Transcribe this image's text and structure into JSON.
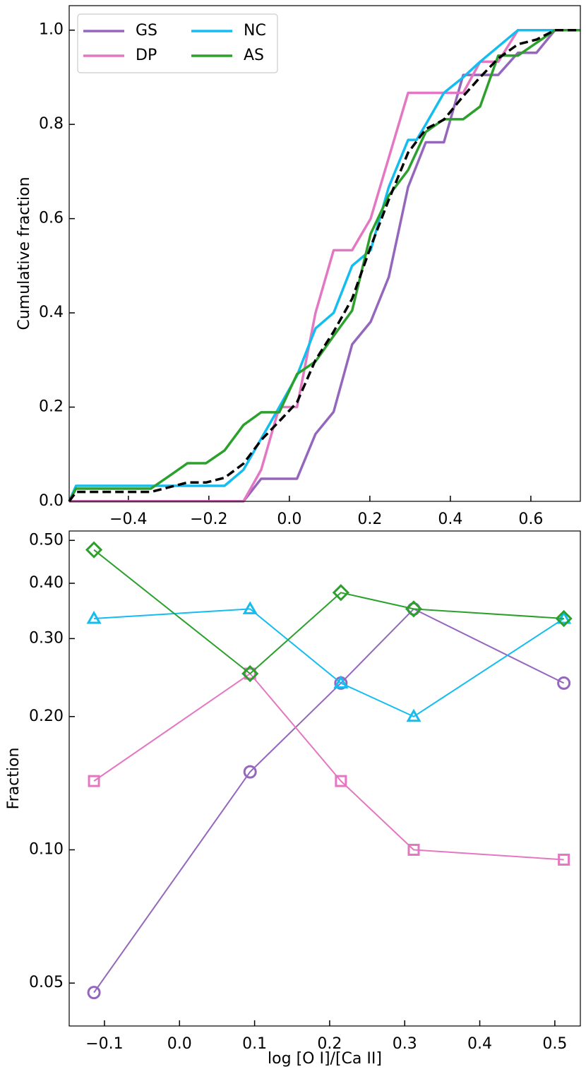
{
  "chart_data": [
    {
      "type": "line",
      "ylabel": "Cumulative fraction",
      "xlim": [
        -0.547,
        0.723
      ],
      "ylim": [
        0,
        1.052
      ],
      "xticks": [
        {
          "value": -0.4,
          "label": "−0.4"
        },
        {
          "value": -0.2,
          "label": "−0.2"
        },
        {
          "value": 0,
          "label": "0.0"
        },
        0.2,
        0.4,
        0.6
      ],
      "yticks": [
        {
          "value": 0,
          "label": "0.0"
        },
        0.2,
        0.4,
        0.6,
        0.8,
        {
          "value": 1,
          "label": "1.0"
        }
      ],
      "legend": "upper left",
      "series": [
        {
          "name": "GS",
          "color": "#9467bd",
          "x": [
            -0.547,
            -0.114,
            -0.07,
            0.019,
            0.065,
            0.11,
            0.156,
            0.202,
            0.247,
            0.295,
            0.339,
            0.384,
            0.432,
            0.519,
            0.568,
            0.614,
            0.66,
            0.723
          ],
          "values": [
            0,
            0,
            0.048,
            0.048,
            0.143,
            0.19,
            0.333,
            0.381,
            0.476,
            0.667,
            0.762,
            0.762,
            0.905,
            0.905,
            0.952,
            0.952,
            1,
            1
          ]
        },
        {
          "name": "DP",
          "color": "#e377c2",
          "x": [
            -0.547,
            -0.114,
            -0.07,
            -0.025,
            0.019,
            0.065,
            0.11,
            0.156,
            0.202,
            0.295,
            0.432,
            0.474,
            0.519,
            0.568,
            0.723
          ],
          "values": [
            0,
            0,
            0.067,
            0.2,
            0.2,
            0.4,
            0.533,
            0.533,
            0.6,
            0.867,
            0.867,
            0.933,
            0.933,
            1,
            1
          ]
        },
        {
          "name": "NC",
          "color": "#13bdf0",
          "x": [
            -0.547,
            -0.53,
            -0.161,
            -0.114,
            -0.07,
            -0.025,
            0.019,
            0.065,
            0.11,
            0.156,
            0.202,
            0.247,
            0.295,
            0.316,
            0.339,
            0.384,
            0.432,
            0.474,
            0.568,
            0.723
          ],
          "values": [
            0,
            0.033,
            0.033,
            0.067,
            0.133,
            0.2,
            0.267,
            0.367,
            0.4,
            0.5,
            0.533,
            0.667,
            0.767,
            0.767,
            0.8,
            0.867,
            0.9,
            0.933,
            1,
            1
          ]
        },
        {
          "name": "AS",
          "color": "#2ca02c",
          "x": [
            -0.547,
            -0.53,
            -0.344,
            -0.298,
            -0.253,
            -0.207,
            -0.161,
            -0.114,
            -0.07,
            -0.025,
            0.019,
            0.065,
            0.11,
            0.156,
            0.202,
            0.247,
            0.295,
            0.339,
            0.384,
            0.432,
            0.474,
            0.519,
            0.568,
            0.614,
            0.66,
            0.723
          ],
          "values": [
            0,
            0.027,
            0.027,
            0.054,
            0.081,
            0.081,
            0.108,
            0.162,
            0.189,
            0.189,
            0.27,
            0.297,
            0.351,
            0.405,
            0.568,
            0.649,
            0.703,
            0.784,
            0.811,
            0.811,
            0.838,
            0.946,
            0.946,
            0.973,
            1,
            1
          ]
        },
        {
          "color": "#000000",
          "dash": true,
          "x": [
            -0.547,
            -0.53,
            -0.344,
            -0.253,
            -0.207,
            -0.161,
            -0.114,
            -0.07,
            -0.025,
            0.019,
            0.065,
            0.11,
            0.156,
            0.202,
            0.247,
            0.295,
            0.339,
            0.384,
            0.432,
            0.474,
            0.519,
            0.568,
            0.614,
            0.66,
            0.723
          ],
          "values": [
            0,
            0.02,
            0.02,
            0.04,
            0.04,
            0.05,
            0.08,
            0.13,
            0.17,
            0.21,
            0.3,
            0.36,
            0.43,
            0.54,
            0.64,
            0.74,
            0.79,
            0.81,
            0.86,
            0.9,
            0.94,
            0.97,
            0.98,
            1,
            1
          ]
        }
      ]
    },
    {
      "type": "line",
      "xlabel": "log [O I]/[Ca II]",
      "ylabel": "Fraction",
      "log_y": true,
      "xlim": [
        -0.147,
        0.534
      ],
      "ylim": [
        0.04,
        0.525
      ],
      "xticks": [
        {
          "value": -0.1,
          "label": "−0.1"
        },
        {
          "value": 0,
          "label": "0.0"
        },
        0.1,
        0.2,
        0.3,
        0.4,
        0.5
      ],
      "yticks": [
        0.05,
        {
          "value": 0.1,
          "label": "0.10"
        },
        {
          "value": 0.2,
          "label": "0.20"
        },
        {
          "value": 0.3,
          "label": "0.30"
        },
        {
          "value": 0.4,
          "label": "0.40"
        },
        {
          "value": 0.5,
          "label": "0.50"
        }
      ],
      "x": [
        -0.114,
        0.094,
        0.215,
        0.312,
        0.512
      ],
      "series": [
        {
          "color": "#9467bd",
          "marker": "circle",
          "values": [
            0.0476,
            0.15,
            0.238,
            0.35,
            0.238
          ]
        },
        {
          "color": "#e377c2",
          "marker": "square",
          "values": [
            0.143,
            0.25,
            0.143,
            0.1,
            0.095
          ]
        },
        {
          "color": "#13bdf0",
          "marker": "triangle",
          "values": [
            0.333,
            0.35,
            0.238,
            0.2,
            0.333
          ]
        },
        {
          "color": "#2ca02c",
          "marker": "diamond",
          "values": [
            0.476,
            0.25,
            0.381,
            0.35,
            0.333
          ]
        }
      ]
    }
  ]
}
